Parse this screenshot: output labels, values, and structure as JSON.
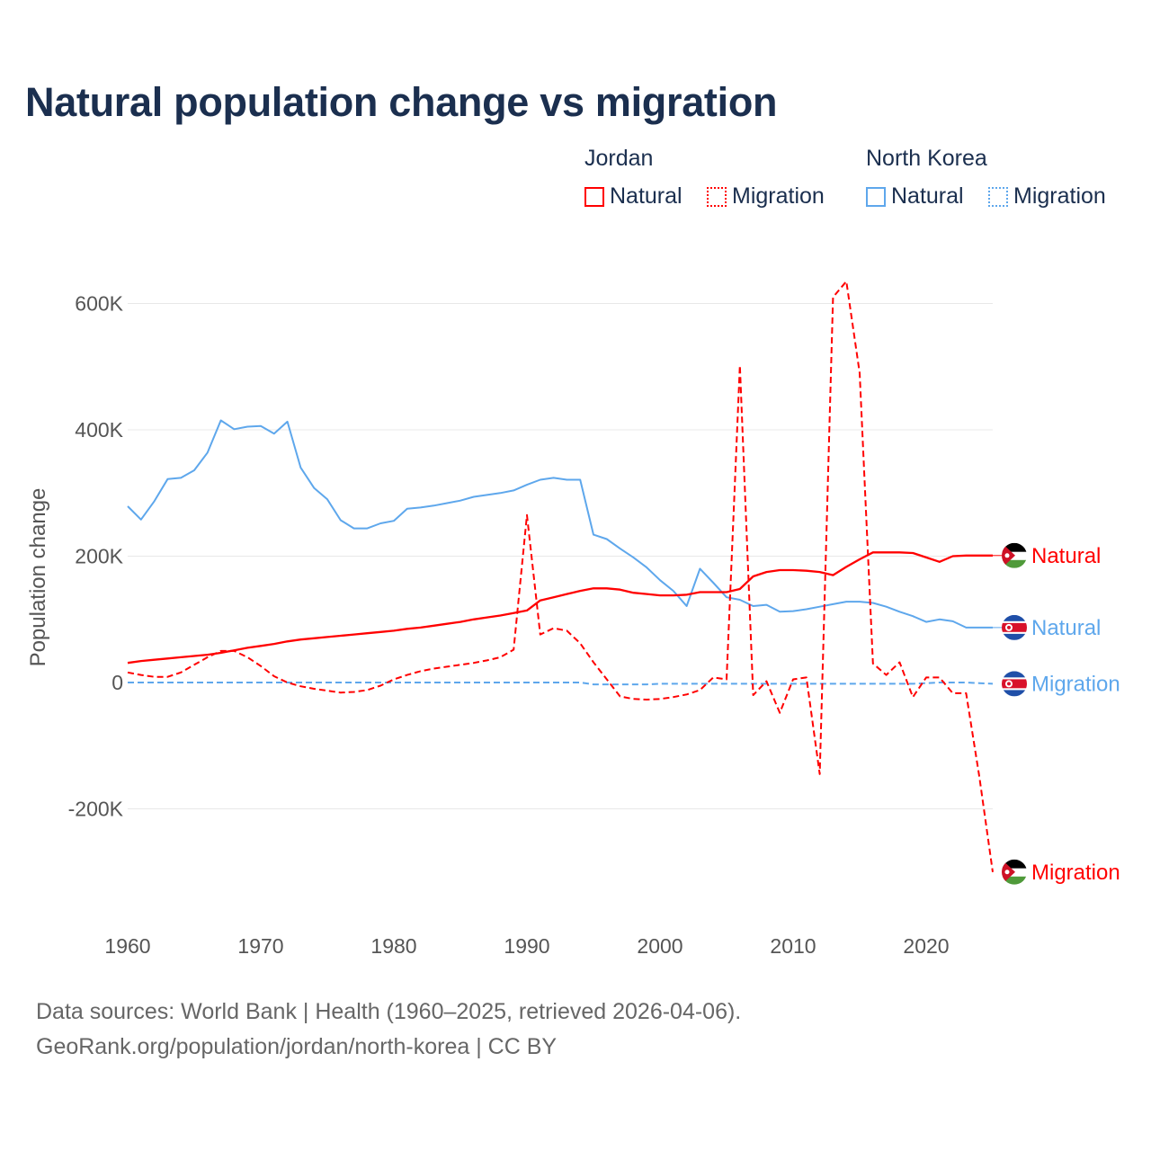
{
  "title": "Natural population change vs migration",
  "legend": {
    "groups": [
      {
        "name": "Jordan",
        "color": "#ff0000",
        "items": [
          "Natural",
          "Migration"
        ]
      },
      {
        "name": "North Korea",
        "color": "#5ea7ec",
        "items": [
          "Natural",
          "Migration"
        ]
      }
    ]
  },
  "footer": {
    "line1": "Data sources: World Bank | Health (1960–2025, retrieved 2026-04-06).",
    "line2": "GeoRank.org/population/jordan/north-korea | CC BY"
  },
  "chart_data": {
    "type": "line",
    "title": "Natural population change vs migration",
    "xlabel": "",
    "ylabel": "Population change",
    "xlim": [
      1960,
      2025
    ],
    "ylim": [
      -300000,
      650000
    ],
    "x_ticks": [
      1960,
      1970,
      1980,
      1990,
      2000,
      2010,
      2020
    ],
    "x_tick_labels": [
      "1960",
      "1970",
      "1980",
      "1990",
      "2000",
      "2010",
      "2020"
    ],
    "y_ticks": [
      -200000,
      0,
      200000,
      400000,
      600000
    ],
    "y_tick_labels": [
      "-200K",
      "0",
      "200K",
      "400K",
      "600K"
    ],
    "grid": true,
    "legend_position": "top-right",
    "x_start": 1960,
    "series": [
      {
        "name": "Jordan Natural",
        "end_label": "Natural",
        "country": "Jordan",
        "color": "#ff0000",
        "dash": false,
        "values_k": [
          31,
          34,
          36,
          38,
          40,
          42,
          44,
          47,
          51,
          55,
          58,
          61,
          65,
          68,
          70,
          72,
          74,
          76,
          78,
          80,
          82,
          85,
          87,
          90,
          93,
          96,
          100,
          103,
          106,
          110,
          114,
          130,
          135,
          140,
          145,
          149,
          149,
          147,
          142,
          140,
          138,
          138,
          139,
          143,
          143,
          143,
          148,
          168,
          175,
          178,
          178,
          177,
          175,
          170,
          183,
          195,
          206,
          206,
          206,
          205,
          198,
          191,
          200,
          201,
          201,
          201
        ]
      },
      {
        "name": "Jordan Migration",
        "end_label": "Migration",
        "country": "Jordan",
        "color": "#ff0000",
        "dash": true,
        "values_k": [
          16,
          12,
          9,
          9,
          16,
          28,
          40,
          50,
          50,
          40,
          26,
          10,
          0,
          -6,
          -10,
          -13,
          -16,
          -15,
          -12,
          -5,
          5,
          12,
          18,
          22,
          25,
          28,
          31,
          35,
          40,
          52,
          265,
          76,
          86,
          82,
          62,
          32,
          5,
          -22,
          -26,
          -27,
          -26,
          -23,
          -19,
          -12,
          8,
          5,
          502,
          -20,
          2,
          -48,
          5,
          8,
          -145,
          610,
          635,
          490,
          30,
          12,
          32,
          -23,
          8,
          8,
          -17,
          -17,
          -150,
          -300
        ]
      },
      {
        "name": "North Korea Natural",
        "end_label": "Natural",
        "country": "North Korea",
        "color": "#5ea7ec",
        "dash": false,
        "values_k": [
          279,
          258,
          287,
          322,
          324,
          336,
          364,
          415,
          401,
          405,
          406,
          394,
          413,
          340,
          308,
          290,
          257,
          244,
          244,
          252,
          256,
          275,
          277,
          280,
          284,
          288,
          294,
          297,
          300,
          304,
          313,
          321,
          324,
          321,
          321,
          234,
          227,
          212,
          198,
          182,
          162,
          145,
          121,
          180,
          158,
          135,
          131,
          121,
          123,
          112,
          113,
          116,
          120,
          124,
          128,
          128,
          126,
          120,
          112,
          105,
          96,
          100,
          97,
          87,
          87,
          87
        ]
      },
      {
        "name": "North Korea Migration",
        "end_label": "Migration",
        "country": "North Korea",
        "color": "#5ea7ec",
        "dash": true,
        "values_k": [
          0,
          0,
          0,
          0,
          0,
          0,
          0,
          0,
          0,
          0,
          0,
          0,
          0,
          0,
          0,
          0,
          0,
          0,
          0,
          0,
          0,
          0,
          0,
          0,
          0,
          0,
          0,
          0,
          0,
          0,
          0,
          0,
          0,
          0,
          0,
          -3,
          -3,
          -3,
          -3,
          -3,
          -2,
          -2,
          -2,
          -2,
          -2,
          -2,
          -2,
          -2,
          -2,
          -2,
          -2,
          -2,
          -2,
          -2,
          -2,
          -2,
          -2,
          -2,
          -2,
          -2,
          -1,
          0,
          0,
          0,
          -1,
          -2
        ]
      }
    ]
  }
}
